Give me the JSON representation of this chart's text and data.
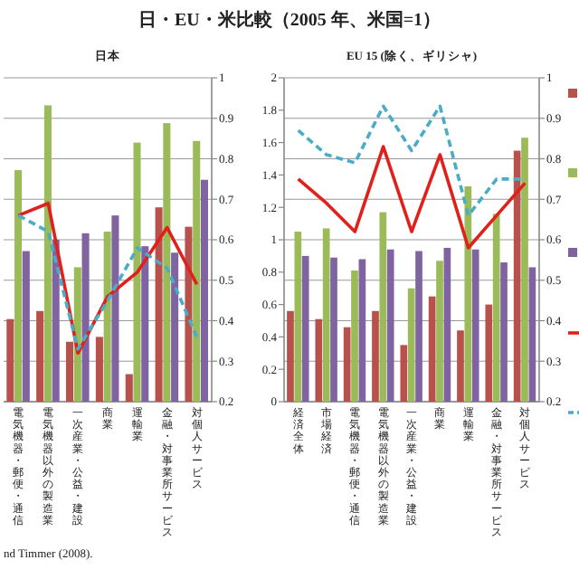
{
  "chart_data": [
    {
      "type": "bar",
      "title": "日・EU・米比較（2005 年、米国=1）",
      "subtitle": "日本",
      "categories": [
        "電気機器・郵便・通信",
        "電気機器以外の製造業",
        "一次産業・公益・建設",
        "商業",
        "運輸業",
        "金融・対事業所サービス",
        "対個人サービス"
      ],
      "series": [
        {
          "color": "#b8504b",
          "values": [
            0.51,
            0.56,
            0.37,
            0.4,
            0.17,
            1.2,
            1.08
          ]
        },
        {
          "color": "#9bbb59",
          "values": [
            1.43,
            1.83,
            0.83,
            1.05,
            1.6,
            1.72,
            1.61
          ]
        },
        {
          "color": "#8064a2",
          "values": [
            0.93,
            1.0,
            1.04,
            1.15,
            0.96,
            0.92,
            1.37
          ]
        },
        {
          "type": "line",
          "axis": "y2",
          "color": "#e0201b",
          "values": [
            0.66,
            0.69,
            0.32,
            0.46,
            0.52,
            0.63,
            0.49
          ]
        },
        {
          "type": "line",
          "axis": "y2",
          "color": "#4bacc6",
          "line_style": "dashed",
          "values": [
            0.66,
            0.62,
            0.33,
            0.45,
            0.58,
            0.53,
            0.36
          ]
        }
      ],
      "ylim": [
        0,
        2
      ],
      "y2lim": [
        0.2,
        1
      ],
      "y2ticks": [
        0.2,
        0.3,
        0.4,
        0.5,
        0.6,
        0.7,
        0.8,
        0.9,
        1
      ],
      "grid": "y",
      "annotations": [
        "nd Timmer (2008)."
      ]
    },
    {
      "type": "bar",
      "subtitle": "EU 15 (除く、ギリシャ)",
      "categories": [
        "経済全体",
        "市場経済",
        "電気機器・郵便・通信",
        "電気機器以外の製造業",
        "一次産業・公益・建設",
        "商業",
        "運輸業",
        "金融・対事業所サービス",
        "対個人サービス"
      ],
      "series": [
        {
          "color": "#b8504b",
          "values": [
            0.56,
            0.51,
            0.46,
            0.56,
            0.35,
            0.65,
            0.44,
            0.6,
            1.55
          ]
        },
        {
          "color": "#9bbb59",
          "values": [
            1.05,
            1.07,
            0.81,
            1.17,
            0.7,
            0.87,
            1.33,
            1.16,
            1.63
          ]
        },
        {
          "color": "#8064a2",
          "values": [
            0.9,
            0.89,
            0.88,
            0.94,
            0.93,
            0.95,
            0.94,
            0.86,
            0.83
          ]
        },
        {
          "type": "line",
          "axis": "y2",
          "color": "#e0201b",
          "values": [
            0.75,
            0.69,
            0.62,
            0.83,
            0.62,
            0.81,
            0.58,
            0.66,
            0.74
          ]
        },
        {
          "type": "line",
          "axis": "y2",
          "color": "#4bacc6",
          "line_style": "dashed",
          "values": [
            0.87,
            0.81,
            0.79,
            0.93,
            0.82,
            0.93,
            0.66,
            0.75,
            0.75
          ]
        }
      ],
      "ylim": [
        0,
        2
      ],
      "yticks": [
        0,
        0.2,
        0.4,
        0.6,
        0.8,
        1,
        1.2,
        1.4,
        1.6,
        1.8,
        2
      ],
      "y2lim": [
        0.2,
        1
      ],
      "y2ticks": [
        0.2,
        0.3,
        0.4,
        0.5,
        0.6,
        0.7,
        0.8,
        0.9,
        1
      ],
      "grid": "y"
    }
  ]
}
